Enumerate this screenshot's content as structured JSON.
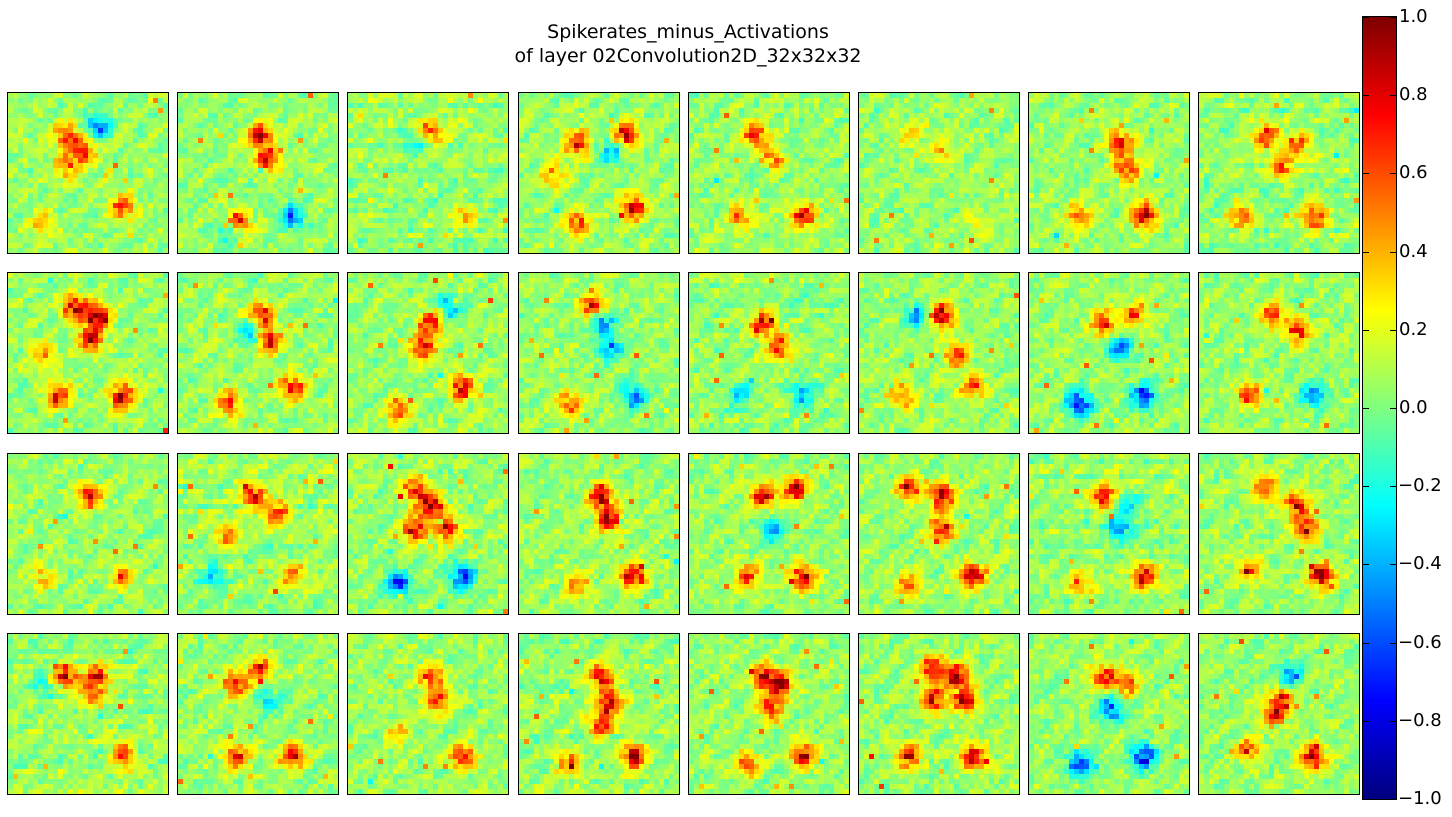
{
  "chart_data": {
    "type": "heatmap",
    "title": "Spikerates_minus_Activations",
    "subtitle": "of layer 02Convolution2D_32x32x32",
    "layout": {
      "rows": 4,
      "cols": 8,
      "feature_map_size": [
        32,
        32
      ]
    },
    "colormap": "jet",
    "colorbar": {
      "range": [
        -1.0,
        1.0
      ],
      "ticks": [
        "1.0",
        "0.8",
        "0.6",
        "0.4",
        "0.2",
        "0.0",
        "−0.2",
        "−0.4",
        "−0.6",
        "−0.8",
        "−1.0"
      ],
      "tick_values": [
        1.0,
        0.8,
        0.6,
        0.4,
        0.2,
        0.0,
        -0.2,
        -0.4,
        -0.6,
        -0.8,
        -1.0
      ]
    },
    "background_value": 0.05,
    "feature_maps": [
      {
        "index": 0,
        "spots": [
          [
            0.35,
            0.25,
            0.7
          ],
          [
            0.55,
            0.2,
            -0.6
          ],
          [
            0.45,
            0.35,
            0.8
          ],
          [
            0.7,
            0.7,
            0.8
          ],
          [
            0.2,
            0.8,
            0.4
          ],
          [
            0.35,
            0.45,
            0.5
          ]
        ]
      },
      {
        "index": 1,
        "spots": [
          [
            0.5,
            0.25,
            0.9
          ],
          [
            0.55,
            0.4,
            0.8
          ],
          [
            0.35,
            0.8,
            0.9
          ],
          [
            0.7,
            0.75,
            -0.7
          ],
          [
            0.3,
            0.85,
            -0.5
          ]
        ]
      },
      {
        "index": 2,
        "spots": [
          [
            0.5,
            0.22,
            0.6
          ],
          [
            0.4,
            0.3,
            -0.3
          ],
          [
            0.7,
            0.75,
            0.4
          ]
        ]
      },
      {
        "index": 3,
        "spots": [
          [
            0.35,
            0.3,
            0.8
          ],
          [
            0.65,
            0.25,
            0.9
          ],
          [
            0.55,
            0.35,
            -0.5
          ],
          [
            0.7,
            0.7,
            0.9
          ],
          [
            0.35,
            0.8,
            0.7
          ],
          [
            0.2,
            0.5,
            0.5
          ]
        ]
      },
      {
        "index": 4,
        "spots": [
          [
            0.4,
            0.25,
            0.8
          ],
          [
            0.5,
            0.4,
            0.7
          ],
          [
            0.7,
            0.75,
            0.9
          ],
          [
            0.3,
            0.75,
            0.5
          ],
          [
            0.45,
            0.45,
            -0.3
          ]
        ]
      },
      {
        "index": 5,
        "spots": [
          [
            0.5,
            0.35,
            0.4
          ],
          [
            0.3,
            0.25,
            0.3
          ],
          [
            0.75,
            0.8,
            0.3
          ]
        ]
      },
      {
        "index": 6,
        "spots": [
          [
            0.55,
            0.3,
            0.8
          ],
          [
            0.6,
            0.45,
            0.7
          ],
          [
            0.7,
            0.75,
            1.0
          ],
          [
            0.3,
            0.75,
            0.6
          ]
        ]
      },
      {
        "index": 7,
        "spots": [
          [
            0.4,
            0.25,
            0.8
          ],
          [
            0.6,
            0.3,
            0.7
          ],
          [
            0.5,
            0.45,
            0.6
          ],
          [
            0.7,
            0.75,
            0.9
          ],
          [
            0.25,
            0.75,
            0.7
          ]
        ]
      },
      {
        "index": 8,
        "spots": [
          [
            0.4,
            0.2,
            0.9
          ],
          [
            0.55,
            0.25,
            1.0
          ],
          [
            0.5,
            0.4,
            0.9
          ],
          [
            0.3,
            0.75,
            0.8
          ],
          [
            0.7,
            0.75,
            1.0
          ],
          [
            0.2,
            0.5,
            0.5
          ]
        ]
      },
      {
        "index": 9,
        "spots": [
          [
            0.5,
            0.25,
            0.9
          ],
          [
            0.55,
            0.4,
            0.9
          ],
          [
            0.45,
            0.35,
            -0.6
          ],
          [
            0.7,
            0.7,
            0.9
          ],
          [
            0.3,
            0.8,
            0.7
          ]
        ]
      },
      {
        "index": 10,
        "spots": [
          [
            0.5,
            0.3,
            0.9
          ],
          [
            0.6,
            0.2,
            -0.5
          ],
          [
            0.45,
            0.45,
            0.8
          ],
          [
            0.7,
            0.7,
            0.9
          ],
          [
            0.3,
            0.85,
            0.6
          ]
        ]
      },
      {
        "index": 11,
        "spots": [
          [
            0.5,
            0.28,
            -0.7
          ],
          [
            0.55,
            0.45,
            -0.6
          ],
          [
            0.45,
            0.2,
            0.9
          ],
          [
            0.7,
            0.75,
            -0.6
          ],
          [
            0.3,
            0.8,
            0.6
          ]
        ]
      },
      {
        "index": 12,
        "spots": [
          [
            0.45,
            0.3,
            0.8
          ],
          [
            0.55,
            0.45,
            0.7
          ],
          [
            0.7,
            0.75,
            -0.5
          ],
          [
            0.3,
            0.75,
            -0.4
          ]
        ]
      },
      {
        "index": 13,
        "spots": [
          [
            0.35,
            0.25,
            -0.5
          ],
          [
            0.5,
            0.25,
            0.9
          ],
          [
            0.6,
            0.5,
            0.7
          ],
          [
            0.7,
            0.7,
            0.7
          ],
          [
            0.25,
            0.75,
            0.6
          ]
        ]
      },
      {
        "index": 14,
        "spots": [
          [
            0.45,
            0.3,
            0.8
          ],
          [
            0.55,
            0.45,
            -0.7
          ],
          [
            0.3,
            0.8,
            -0.9
          ],
          [
            0.7,
            0.75,
            -0.8
          ],
          [
            0.65,
            0.25,
            0.7
          ]
        ]
      },
      {
        "index": 15,
        "spots": [
          [
            0.45,
            0.25,
            0.7
          ],
          [
            0.6,
            0.35,
            0.8
          ],
          [
            0.7,
            0.75,
            -0.6
          ],
          [
            0.3,
            0.75,
            0.7
          ]
        ]
      },
      {
        "index": 16,
        "spots": [
          [
            0.5,
            0.25,
            0.8
          ],
          [
            0.7,
            0.75,
            0.5
          ],
          [
            0.2,
            0.75,
            0.4
          ]
        ]
      },
      {
        "index": 17,
        "spots": [
          [
            0.45,
            0.25,
            0.8
          ],
          [
            0.6,
            0.35,
            0.7
          ],
          [
            0.3,
            0.5,
            0.6
          ],
          [
            0.7,
            0.75,
            0.6
          ],
          [
            0.2,
            0.75,
            -0.4
          ]
        ]
      },
      {
        "index": 18,
        "spots": [
          [
            0.5,
            0.3,
            1.0
          ],
          [
            0.4,
            0.45,
            0.9
          ],
          [
            0.6,
            0.45,
            0.8
          ],
          [
            0.3,
            0.8,
            -0.8
          ],
          [
            0.7,
            0.75,
            -0.8
          ],
          [
            0.4,
            0.2,
            0.7
          ]
        ]
      },
      {
        "index": 19,
        "spots": [
          [
            0.5,
            0.25,
            0.9
          ],
          [
            0.55,
            0.4,
            0.9
          ],
          [
            0.7,
            0.75,
            0.9
          ],
          [
            0.35,
            0.8,
            0.6
          ]
        ]
      },
      {
        "index": 20,
        "spots": [
          [
            0.45,
            0.25,
            0.9
          ],
          [
            0.65,
            0.2,
            0.9
          ],
          [
            0.5,
            0.45,
            -0.5
          ],
          [
            0.7,
            0.75,
            0.9
          ],
          [
            0.35,
            0.75,
            0.7
          ]
        ]
      },
      {
        "index": 21,
        "spots": [
          [
            0.5,
            0.25,
            1.0
          ],
          [
            0.5,
            0.45,
            0.9
          ],
          [
            0.3,
            0.2,
            0.8
          ],
          [
            0.7,
            0.75,
            1.0
          ],
          [
            0.3,
            0.8,
            0.6
          ]
        ]
      },
      {
        "index": 22,
        "spots": [
          [
            0.45,
            0.25,
            0.8
          ],
          [
            0.55,
            0.45,
            -0.6
          ],
          [
            0.7,
            0.75,
            0.9
          ],
          [
            0.3,
            0.8,
            0.5
          ],
          [
            0.6,
            0.3,
            -0.4
          ]
        ]
      },
      {
        "index": 23,
        "spots": [
          [
            0.4,
            0.2,
            0.7
          ],
          [
            0.6,
            0.3,
            0.8
          ],
          [
            0.65,
            0.45,
            0.9
          ],
          [
            0.75,
            0.75,
            1.0
          ],
          [
            0.3,
            0.7,
            0.6
          ]
        ]
      },
      {
        "index": 24,
        "spots": [
          [
            0.35,
            0.25,
            0.8
          ],
          [
            0.55,
            0.25,
            0.7
          ],
          [
            0.5,
            0.35,
            0.6
          ],
          [
            0.7,
            0.75,
            0.7
          ],
          [
            0.2,
            0.3,
            -0.3
          ]
        ]
      },
      {
        "index": 25,
        "spots": [
          [
            0.35,
            0.3,
            0.8
          ],
          [
            0.5,
            0.2,
            0.7
          ],
          [
            0.55,
            0.4,
            -0.4
          ],
          [
            0.7,
            0.75,
            0.9
          ],
          [
            0.35,
            0.75,
            0.8
          ]
        ]
      },
      {
        "index": 26,
        "spots": [
          [
            0.5,
            0.25,
            0.7
          ],
          [
            0.55,
            0.4,
            0.8
          ],
          [
            0.7,
            0.75,
            0.9
          ],
          [
            0.3,
            0.6,
            0.4
          ]
        ]
      },
      {
        "index": 27,
        "spots": [
          [
            0.5,
            0.25,
            0.9
          ],
          [
            0.55,
            0.4,
            0.9
          ],
          [
            0.5,
            0.55,
            0.8
          ],
          [
            0.7,
            0.75,
            1.0
          ],
          [
            0.3,
            0.8,
            0.6
          ]
        ]
      },
      {
        "index": 28,
        "spots": [
          [
            0.45,
            0.25,
            0.8
          ],
          [
            0.55,
            0.3,
            1.0
          ],
          [
            0.5,
            0.45,
            0.8
          ],
          [
            0.7,
            0.75,
            0.9
          ],
          [
            0.35,
            0.8,
            0.6
          ]
        ]
      },
      {
        "index": 29,
        "spots": [
          [
            0.45,
            0.2,
            1.0
          ],
          [
            0.6,
            0.25,
            1.0
          ],
          [
            0.45,
            0.4,
            0.9
          ],
          [
            0.65,
            0.4,
            0.9
          ],
          [
            0.7,
            0.75,
            1.0
          ],
          [
            0.3,
            0.75,
            0.8
          ]
        ]
      },
      {
        "index": 30,
        "spots": [
          [
            0.45,
            0.25,
            0.8
          ],
          [
            0.5,
            0.45,
            -0.7
          ],
          [
            0.3,
            0.8,
            -0.8
          ],
          [
            0.7,
            0.75,
            -0.9
          ],
          [
            0.6,
            0.3,
            0.6
          ]
        ]
      },
      {
        "index": 31,
        "spots": [
          [
            0.55,
            0.25,
            -0.6
          ],
          [
            0.5,
            0.4,
            0.8
          ],
          [
            0.7,
            0.75,
            1.0
          ],
          [
            0.3,
            0.7,
            0.6
          ],
          [
            0.45,
            0.5,
            0.6
          ]
        ]
      }
    ]
  }
}
